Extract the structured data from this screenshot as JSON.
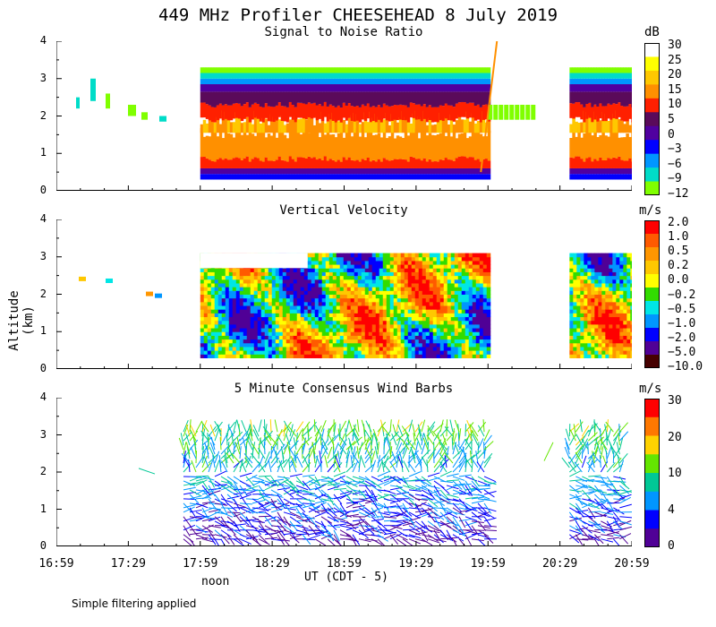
{
  "title": "449 MHz Profiler CHEESEHEAD  8 July 2019",
  "footnote": "Simple filtering applied",
  "x_axis": {
    "label": "UT  (CDT - 5)",
    "ticks": [
      "16:59",
      "17:29",
      "17:59",
      "18:29",
      "18:59",
      "19:29",
      "19:59",
      "20:29",
      "20:59"
    ],
    "tick_minutes": [
      1019,
      1049,
      1079,
      1109,
      1139,
      1169,
      1199,
      1229,
      1259
    ],
    "range_minutes": [
      1019,
      1259
    ],
    "noon_label": "noon",
    "noon_minutes": 1080
  },
  "y_axis": {
    "label": "Altitude (km)",
    "ticks": [
      "0",
      "1",
      "2",
      "3",
      "4"
    ],
    "range_km": [
      0,
      4
    ]
  },
  "chart_data": [
    {
      "type": "heatmap",
      "title": "Signal to Noise Ratio",
      "units": "dB",
      "colorbar_labels": [
        "30",
        "25",
        "20",
        "15",
        "10",
        "5",
        "0",
        "−3",
        "−6",
        "−9",
        "−12"
      ],
      "colorbar_colors": [
        "#ffffff",
        "#ffff00",
        "#ffc800",
        "#ff9000",
        "#ff2000",
        "#5a0a5a",
        "#5000a0",
        "#0000ff",
        "#0096ff",
        "#00dcc8",
        "#80ff00"
      ],
      "data_extent": {
        "dense_start": "17:59",
        "dense_end": "19:59",
        "second_block_start": "20:33",
        "bottom_km": 0.3,
        "top_km": 3.3
      },
      "description_layers": [
        {
          "range_km": [
            0.3,
            0.5
          ],
          "approx_db": -3
        },
        {
          "range_km": [
            0.5,
            2.0
          ],
          "approx_db": 12
        },
        {
          "range_km": [
            2.0,
            2.7
          ],
          "approx_db": 3
        },
        {
          "range_km": [
            2.7,
            3.3
          ],
          "approx_db": -6
        }
      ]
    },
    {
      "type": "heatmap",
      "title": "Vertical Velocity",
      "units": "m/s",
      "colorbar_labels": [
        "2.0",
        "1.0",
        "0.5",
        "0.2",
        "0.0",
        "−0.2",
        "−0.5",
        "−1.0",
        "−2.0",
        "−5.0",
        "−10.0"
      ],
      "colorbar_colors": [
        "#ff0000",
        "#ff5a00",
        "#ff9600",
        "#ffc800",
        "#ffff00",
        "#32dc00",
        "#00e6e6",
        "#0096ff",
        "#0000ff",
        "#500096",
        "#460000"
      ],
      "data_extent": {
        "dense_start": "17:59",
        "dense_end": "19:59",
        "second_block_start": "20:33",
        "bottom_km": 0.3,
        "top_km": 3.1
      }
    },
    {
      "type": "wind_barbs",
      "title": "5 Minute Consensus Wind Barbs",
      "units": "m/s",
      "colorbar_labels": [
        "30",
        "20",
        "10",
        "4",
        "0"
      ],
      "colorbar_colors": [
        "#ff0000",
        "#ff7800",
        "#ffd200",
        "#64e600",
        "#00c896",
        "#0096ff",
        "#0000ff",
        "#500096"
      ],
      "data_extent": {
        "dense_start": "17:52",
        "dense_end": "19:59",
        "second_block_start": "20:33",
        "bottom_km": 0.1,
        "top_km": 3.1
      }
    }
  ]
}
